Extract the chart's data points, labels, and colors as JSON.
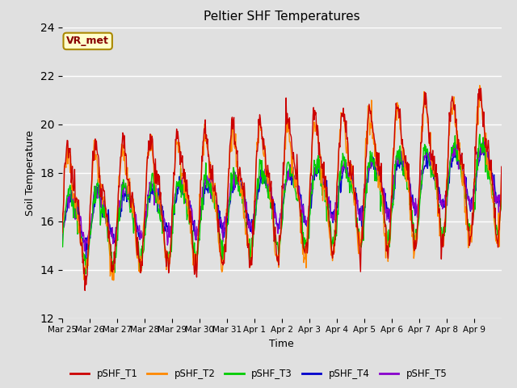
{
  "title": "Peltier SHF Temperatures",
  "xlabel": "Time",
  "ylabel": "Soil Temperature",
  "ylim": [
    12,
    24
  ],
  "background_color": "#e0e0e0",
  "plot_bg_color": "#e0e0e0",
  "series_colors": {
    "pSHF_T1": "#cc0000",
    "pSHF_T2": "#ff8800",
    "pSHF_T3": "#00cc00",
    "pSHF_T4": "#0000cc",
    "pSHF_T5": "#8800cc"
  },
  "legend_label": "VR_met",
  "annotation_bg": "#ffffcc",
  "annotation_border": "#aa8800",
  "annotation_text_color": "#880000",
  "yticks": [
    12,
    14,
    16,
    18,
    20,
    22,
    24
  ],
  "x_tick_labels": [
    "Mar 25",
    "Mar 26",
    "Mar 27",
    "Mar 28",
    "Mar 29",
    "Mar 30",
    "Mar 31",
    "Apr 1",
    "Apr 2",
    "Apr 3",
    "Apr 4",
    "Apr 5",
    "Apr 6",
    "Apr 7",
    "Apr 8",
    "Apr 9"
  ],
  "x_tick_positions": [
    0,
    1,
    2,
    3,
    4,
    5,
    6,
    7,
    8,
    9,
    10,
    11,
    12,
    13,
    14,
    15
  ],
  "linewidth": 1.0,
  "n_points_per_day": 48,
  "n_days": 16
}
